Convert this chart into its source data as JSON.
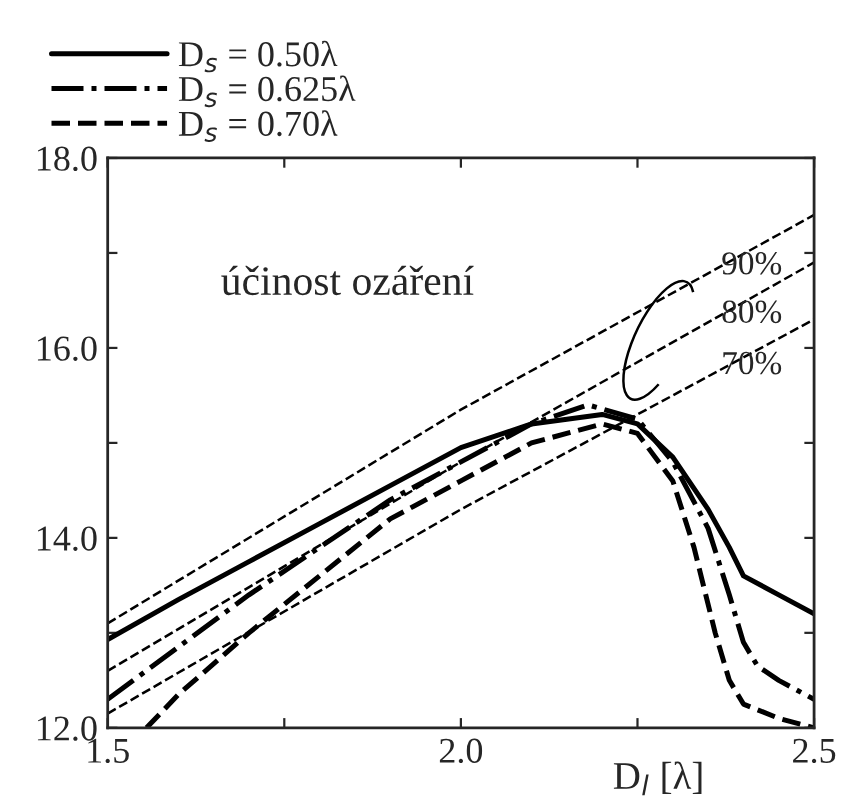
{
  "chart_data": {
    "type": "line",
    "xlabel": "D$_{l}$ [λ]",
    "xlim": [
      1.5,
      2.5
    ],
    "ylim": [
      12,
      18
    ],
    "xticks": [
      {
        "value": 1.5,
        "label": "1.5"
      },
      {
        "value": 1.75,
        "label": null
      },
      {
        "value": 2.0,
        "label": "2.0"
      },
      {
        "value": 2.25,
        "label": null
      },
      {
        "value": 2.5,
        "label": "2.5"
      }
    ],
    "yticks": [
      {
        "value": 12,
        "label": "12.0"
      },
      {
        "value": 13,
        "label": null
      },
      {
        "value": 14,
        "label": "14.0"
      },
      {
        "value": 15,
        "label": null
      },
      {
        "value": 16,
        "label": "16.0"
      },
      {
        "value": 17,
        "label": null
      },
      {
        "value": 18,
        "label": "18.0"
      }
    ],
    "grid": false,
    "legend": "top left",
    "marker": "none",
    "annotations": [
      "účinost ozáření",
      "90%",
      "80%",
      "70%"
    ],
    "series": [
      {
        "name": "D$_{s}$ = 0.50λ",
        "color": "#000000",
        "line_style": "solid",
        "x": [
          1.5,
          1.6,
          1.7,
          1.8,
          1.9,
          2.0,
          2.1,
          2.2,
          2.25,
          2.3,
          2.35,
          2.38,
          2.4,
          2.45,
          2.5
        ],
        "values": [
          12.93,
          13.35,
          13.75,
          14.15,
          14.55,
          14.95,
          15.2,
          15.3,
          15.2,
          14.85,
          14.3,
          13.9,
          13.6,
          13.4,
          13.2
        ]
      },
      {
        "name": "D$_{s}$ = 0.625λ",
        "color": "#000000",
        "line_style": "dashdot",
        "x": [
          1.5,
          1.6,
          1.7,
          1.8,
          1.9,
          2.0,
          2.1,
          2.18,
          2.25,
          2.3,
          2.35,
          2.38,
          2.4,
          2.42,
          2.45,
          2.5
        ],
        "values": [
          12.3,
          12.85,
          13.4,
          13.9,
          14.4,
          14.8,
          15.2,
          15.4,
          15.25,
          14.8,
          14.1,
          13.4,
          12.9,
          12.65,
          12.5,
          12.3
        ]
      },
      {
        "name": "D$_{s}$ = 0.70λ",
        "color": "#000000",
        "line_style": "dashed",
        "x": [
          1.555,
          1.6,
          1.7,
          1.8,
          1.9,
          2.0,
          2.1,
          2.2,
          2.25,
          2.3,
          2.33,
          2.36,
          2.38,
          2.4,
          2.45,
          2.5
        ],
        "values": [
          12.0,
          12.35,
          13.0,
          13.6,
          14.2,
          14.6,
          15.0,
          15.2,
          15.1,
          14.6,
          13.9,
          13.0,
          12.5,
          12.25,
          12.1,
          12.0
        ]
      },
      {
        "color": "#000000",
        "line_style": "dashed",
        "x": [
          1.5,
          2.0,
          2.5
        ],
        "values": [
          13.1,
          15.35,
          17.4
        ]
      },
      {
        "color": "#000000",
        "line_style": "dashed",
        "x": [
          1.5,
          2.0,
          2.5
        ],
        "values": [
          12.6,
          14.8,
          16.9
        ]
      },
      {
        "color": "#000000",
        "line_style": "dashed",
        "x": [
          1.5,
          2.0,
          2.5
        ],
        "values": [
          12.15,
          14.3,
          16.3
        ]
      }
    ]
  }
}
